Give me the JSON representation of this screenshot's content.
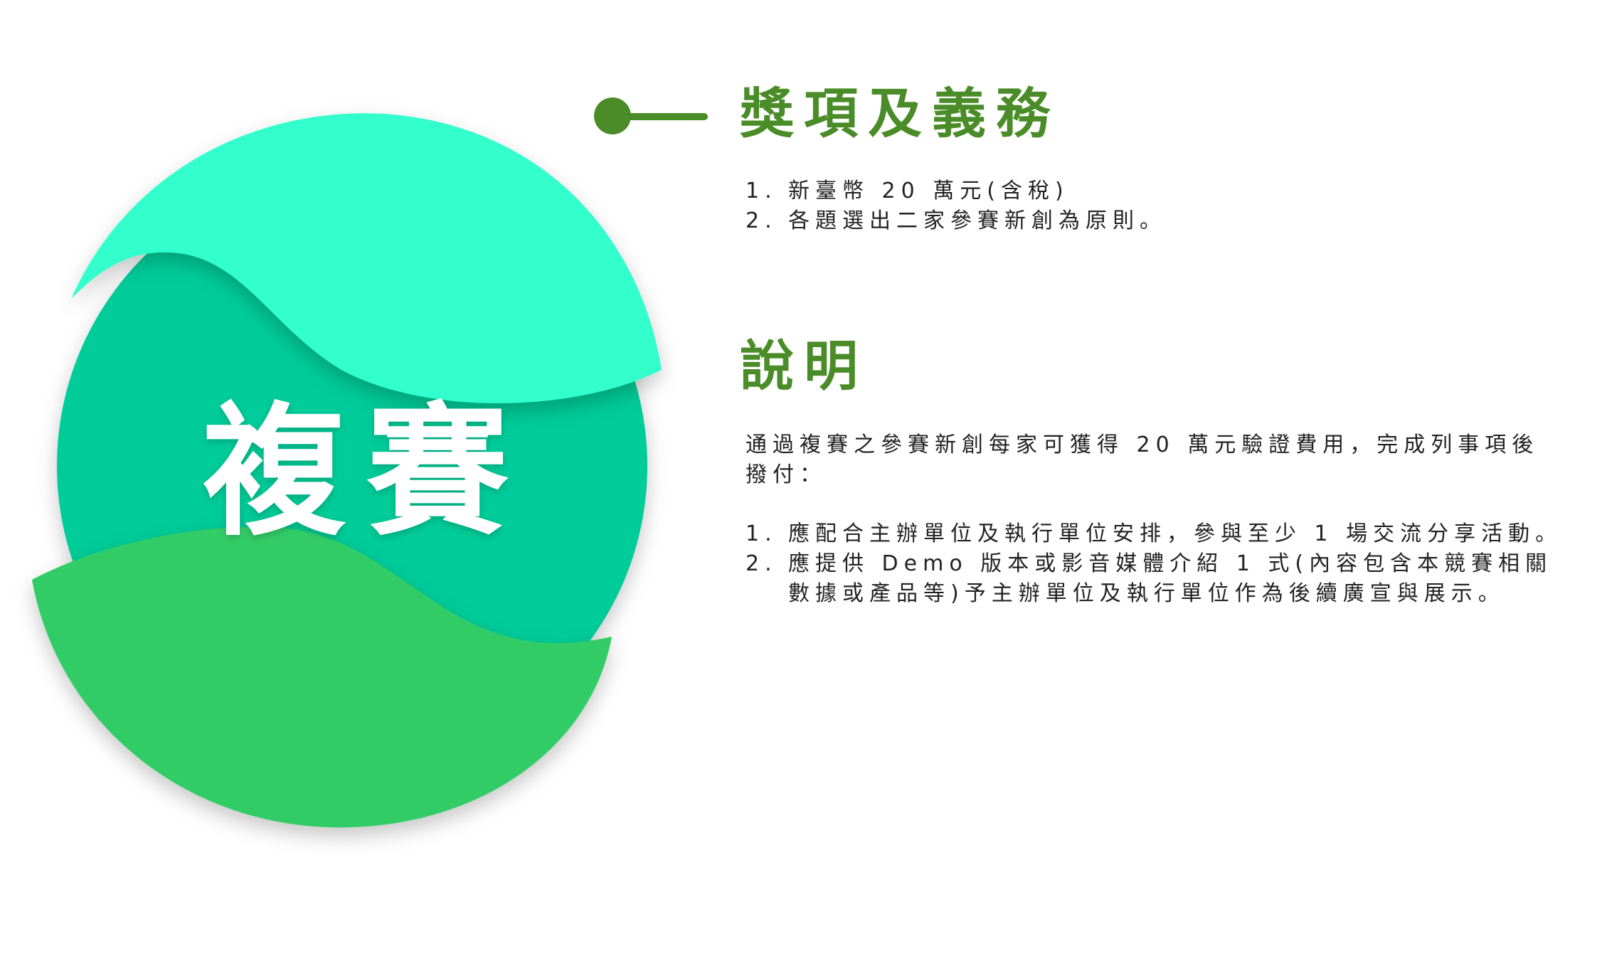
{
  "badge": {
    "label": "複賽"
  },
  "awards": {
    "title": "獎項及義務",
    "items": [
      {
        "num": "1.",
        "text": "新臺幣 20 萬元(含稅)"
      },
      {
        "num": "2.",
        "text": "各題選出二家參賽新創為原則。"
      }
    ]
  },
  "notes": {
    "title": "說明",
    "intro_line1": "通過複賽之參賽新創每家可獲得 20 萬元驗證費用，完成列事項後",
    "intro_line2": "撥付：",
    "items": [
      {
        "num": "1.",
        "text": "應配合主辦單位及執行單位安排，參與至少 1 場交流分享活動。"
      },
      {
        "num": "2.",
        "text": "應提供 Demo 版本或影音媒體介紹 1 式(內容包含本競賽相關",
        "continuation": "數據或產品等)予主辦單位及執行單位作為後續廣宣與展示。"
      }
    ]
  },
  "colors": {
    "heading": "#4a8c27",
    "mint": "#33ffcc",
    "teal": "#00cc99",
    "green": "#33cc66",
    "text": "#222222"
  }
}
